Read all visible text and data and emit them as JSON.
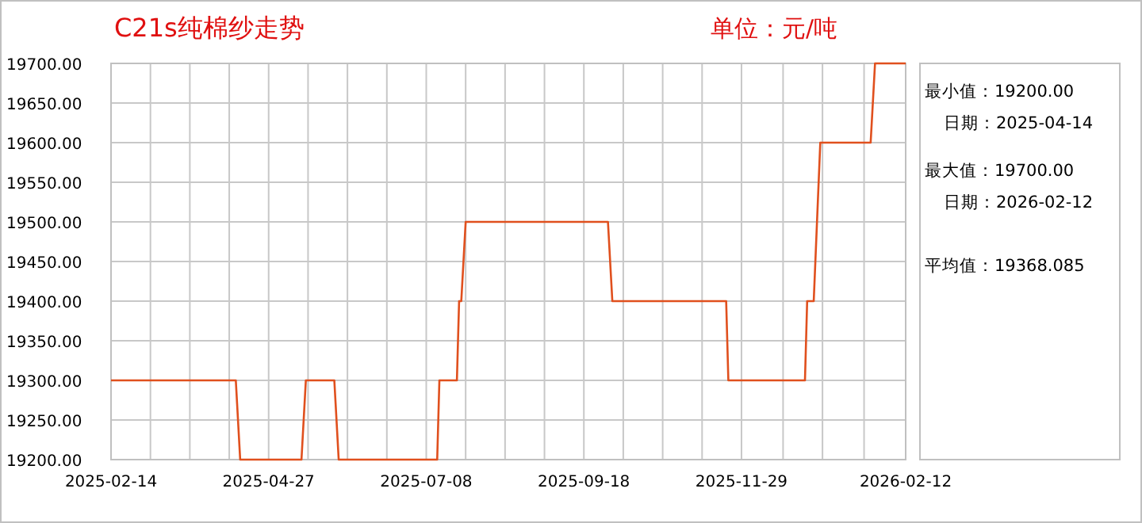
{
  "chart_data": {
    "type": "line",
    "title": "C21s纯棉纱走势",
    "subtitle": "单位：元/吨",
    "color": "#e0501e",
    "grid": true,
    "x": [
      "2025-02-14",
      "2025-04-12",
      "2025-04-14",
      "2025-05-12",
      "2025-05-14",
      "2025-05-27",
      "2025-05-29",
      "2025-07-13",
      "2025-07-14",
      "2025-07-22",
      "2025-07-23",
      "2025-07-24",
      "2025-07-26",
      "2025-09-29",
      "2025-10-01",
      "2025-11-22",
      "2025-11-23",
      "2025-12-28",
      "2025-12-29",
      "2026-01-01",
      "2026-01-04",
      "2026-01-27",
      "2026-01-29",
      "2026-02-12"
    ],
    "values": [
      19300,
      19300,
      19200,
      19200,
      19300,
      19300,
      19200,
      19200,
      19300,
      19300,
      19400,
      19400,
      19500,
      19500,
      19400,
      19400,
      19300,
      19300,
      19400,
      19400,
      19600,
      19600,
      19700,
      19700
    ],
    "xlim": [
      "2025-02-14",
      "2026-02-12"
    ],
    "ylim": [
      19200,
      19700
    ],
    "xticks": [
      {
        "value": "2025-02-14",
        "label": "2025-02-14"
      },
      {
        "value": "2025-03-04",
        "label": null
      },
      {
        "value": "2025-03-22",
        "label": null
      },
      {
        "value": "2025-04-09",
        "label": null
      },
      {
        "value": "2025-04-27",
        "label": "2025-04-27"
      },
      {
        "value": "2025-05-15",
        "label": null
      },
      {
        "value": "2025-06-02",
        "label": null
      },
      {
        "value": "2025-06-20",
        "label": null
      },
      {
        "value": "2025-07-08",
        "label": "2025-07-08"
      },
      {
        "value": "2025-07-26",
        "label": null
      },
      {
        "value": "2025-08-13",
        "label": null
      },
      {
        "value": "2025-08-31",
        "label": null
      },
      {
        "value": "2025-09-18",
        "label": "2025-09-18"
      },
      {
        "value": "2025-10-06",
        "label": null
      },
      {
        "value": "2025-10-24",
        "label": null
      },
      {
        "value": "2025-11-11",
        "label": null
      },
      {
        "value": "2025-11-29",
        "label": "2025-11-29"
      },
      {
        "value": "2025-12-18",
        "label": null
      },
      {
        "value": "2026-01-05",
        "label": null
      },
      {
        "value": "2026-01-24",
        "label": null
      },
      {
        "value": "2026-02-12",
        "label": "2026-02-12"
      }
    ],
    "yticks": [
      {
        "value": 19200,
        "label": "19200.00"
      },
      {
        "value": 19250,
        "label": "19250.00"
      },
      {
        "value": 19300,
        "label": "19300.00"
      },
      {
        "value": 19350,
        "label": "19350.00"
      },
      {
        "value": 19400,
        "label": "19400.00"
      },
      {
        "value": 19450,
        "label": "19450.00"
      },
      {
        "value": 19500,
        "label": "19500.00"
      },
      {
        "value": 19550,
        "label": "19550.00"
      },
      {
        "value": 19600,
        "label": "19600.00"
      },
      {
        "value": 19650,
        "label": "19650.00"
      },
      {
        "value": 19700,
        "label": "19700.00"
      }
    ],
    "annotations": [
      "最小值：19200.00",
      "日期：2025-04-14",
      "最大值：19700.00",
      "日期：2026-02-12",
      "平均值：19368.085"
    ]
  }
}
